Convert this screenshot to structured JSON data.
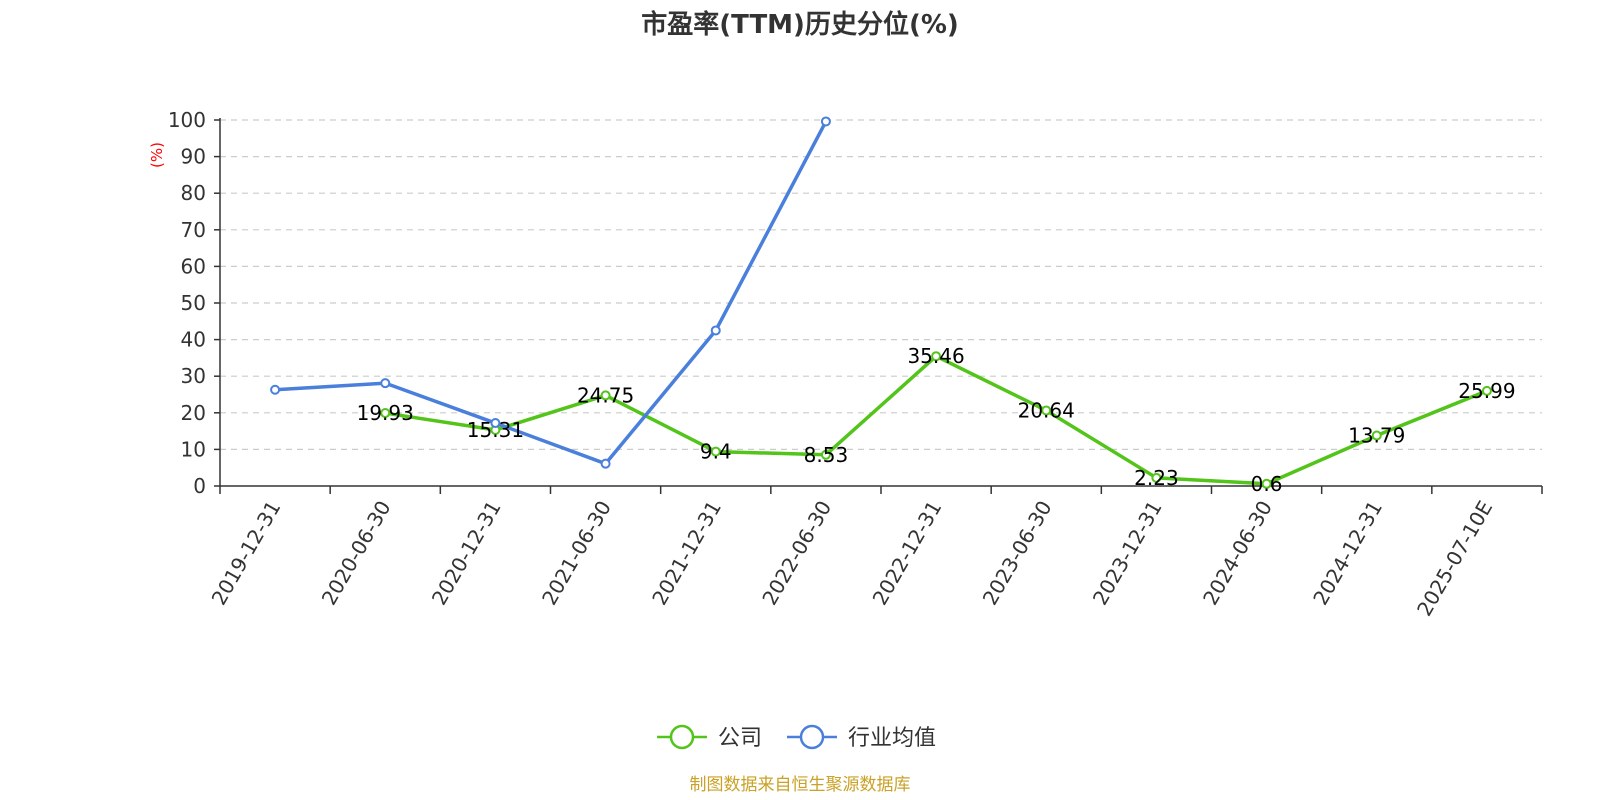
{
  "chart_data": {
    "type": "line",
    "title": "市盈率(TTM)历史分位(%)",
    "ylabel": "(%)",
    "ylim": [
      0,
      100
    ],
    "yticks": [
      "0",
      "10",
      "20",
      "30",
      "40",
      "50",
      "60",
      "70",
      "80",
      "90",
      "100"
    ],
    "grid": true,
    "legend_position": "bottom",
    "categories": [
      "2019-12-31",
      "2020-06-30",
      "2020-12-31",
      "2021-06-30",
      "2021-12-31",
      "2022-06-30",
      "2022-12-31",
      "2023-06-30",
      "2023-12-31",
      "2024-06-30",
      "2024-12-31",
      "2025-07-10E"
    ],
    "series": [
      {
        "name": "公司",
        "color": "#52c41a",
        "values": [
          null,
          19.93,
          15.31,
          24.75,
          9.4,
          8.53,
          35.46,
          20.64,
          2.23,
          0.6,
          13.79,
          25.99
        ],
        "labels": [
          "",
          "19.93",
          "15.31",
          "24.75",
          "9.4",
          "8.53",
          "35.46",
          "20.64",
          "2.23",
          "0.6",
          "13.79",
          "25.99"
        ]
      },
      {
        "name": "行业均值",
        "color": "#4a7fdc",
        "values": [
          26.3,
          28.1,
          17.2,
          6.1,
          42.5,
          99.6,
          null,
          null,
          null,
          null,
          null,
          null
        ],
        "labels": []
      }
    ]
  },
  "source": "制图数据来自恒生聚源数据库"
}
